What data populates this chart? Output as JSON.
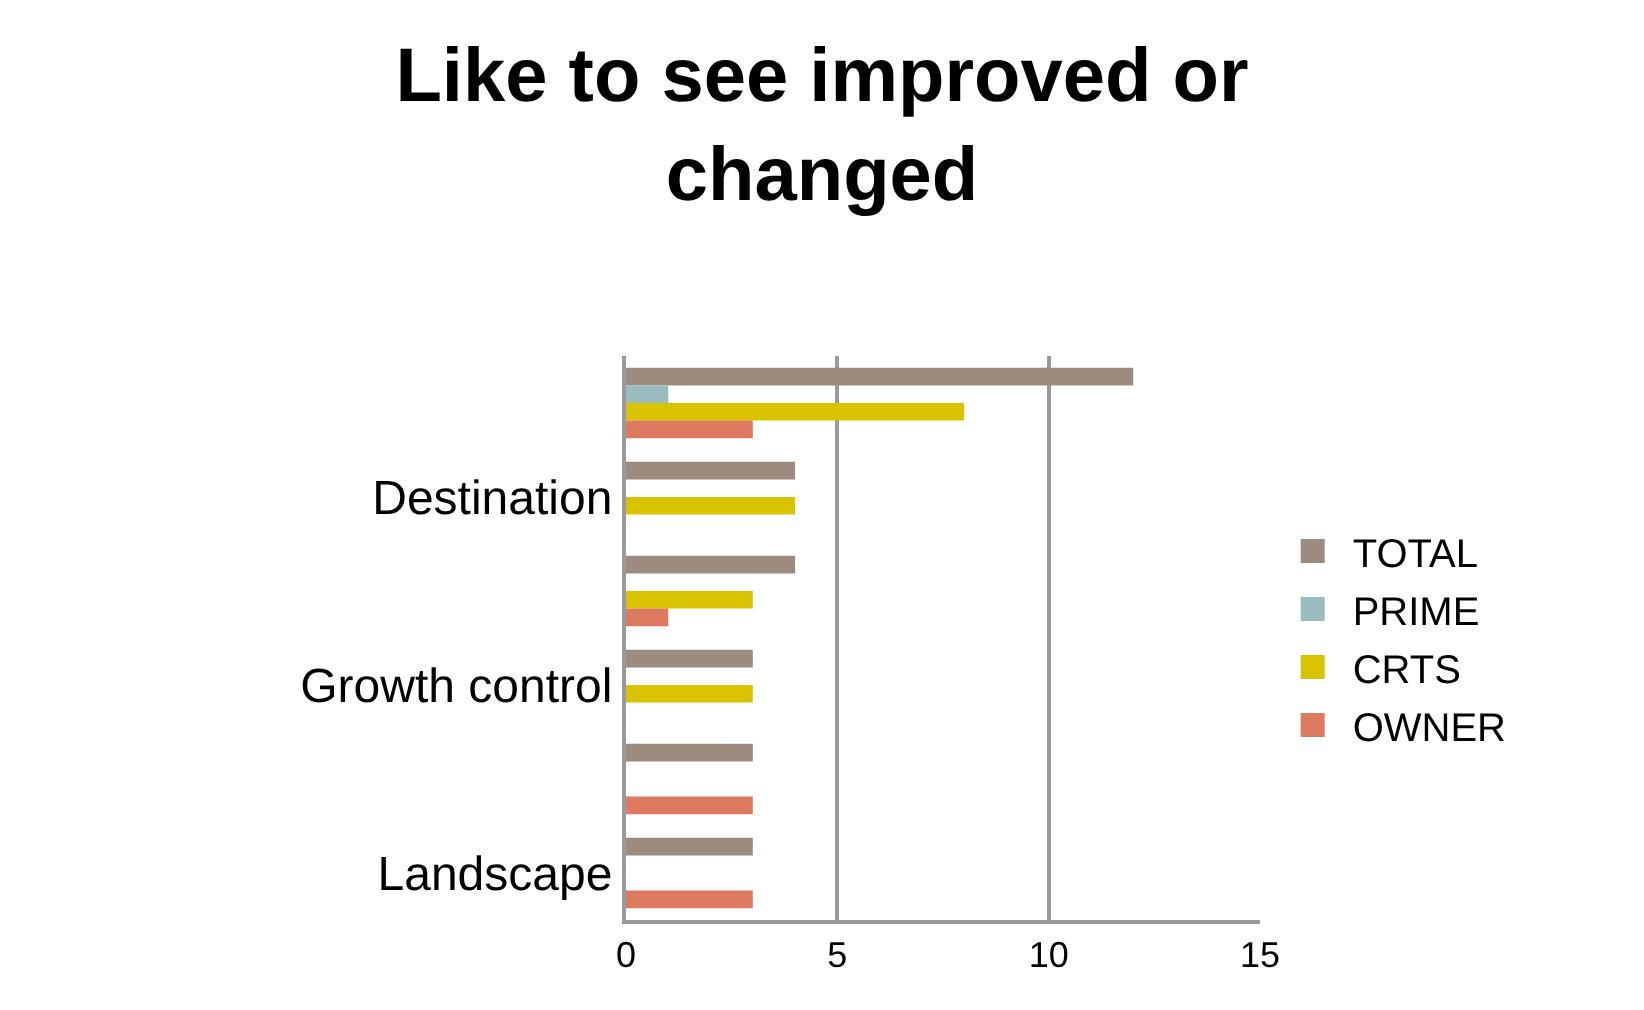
{
  "chart_data": {
    "type": "bar",
    "orientation": "horizontal",
    "title": "Like to see improved or changed",
    "categories": [
      null,
      "Destination",
      null,
      "Growth control",
      null,
      "Landscape"
    ],
    "series": [
      {
        "name": "TOTAL",
        "color": "#9e8b80",
        "values": [
          12,
          4,
          4,
          3,
          3,
          3
        ]
      },
      {
        "name": "PRIME",
        "color": "#9bbcbf",
        "values": [
          1,
          null,
          null,
          null,
          null,
          null
        ]
      },
      {
        "name": "CRTS",
        "color": "#d9c200",
        "values": [
          8,
          4,
          3,
          3,
          null,
          null
        ]
      },
      {
        "name": "OWNER",
        "color": "#dd7a5f",
        "values": [
          3,
          null,
          1,
          null,
          3,
          3
        ]
      }
    ],
    "xlim": [
      0,
      15
    ],
    "xticks": [
      0,
      5,
      10,
      15
    ],
    "grid": "x",
    "legend": "right"
  }
}
